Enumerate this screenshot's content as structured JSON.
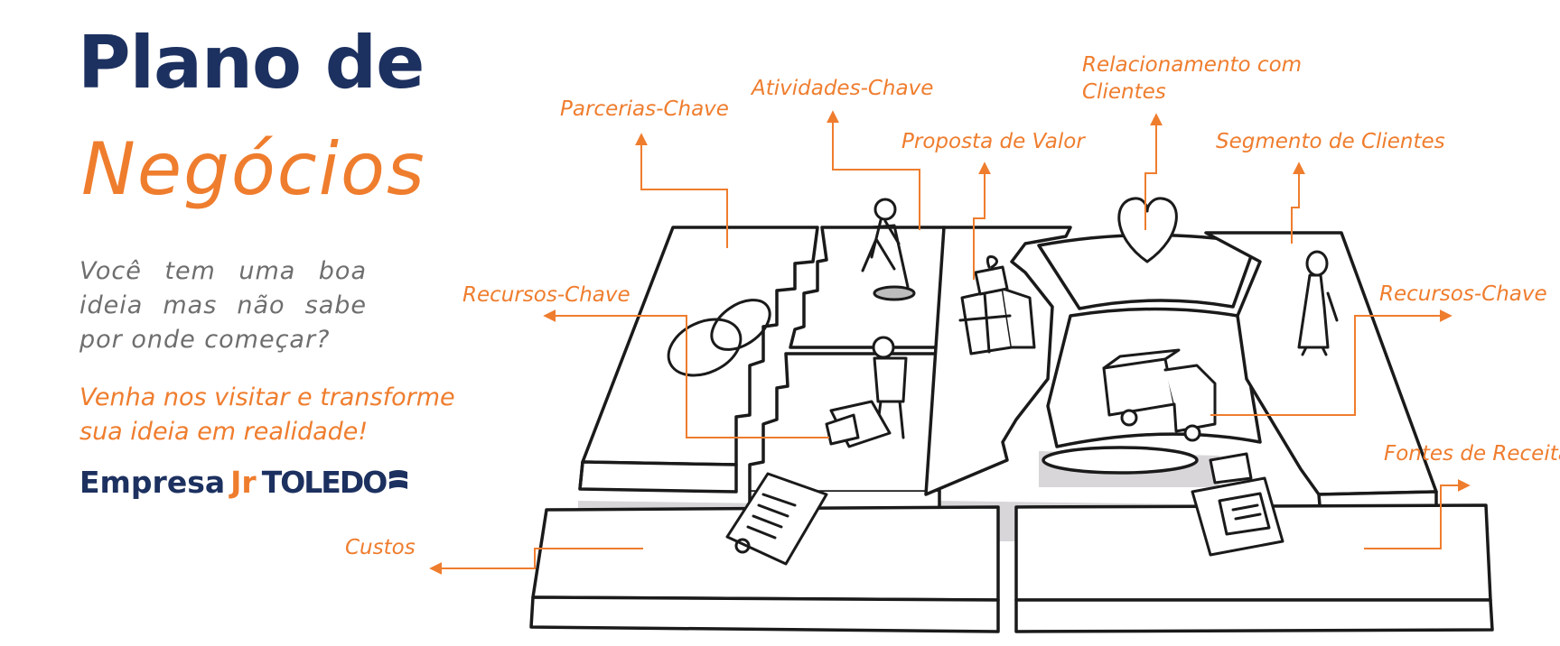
{
  "title": {
    "line1": "Plano de",
    "line2": "Negócios"
  },
  "intro": {
    "question": "Você tem uma boa ideia mas não sabe por onde começar?"
  },
  "cta": {
    "text": "Venha nos visitar e transforme sua ideia em realidade!"
  },
  "logo": {
    "part1": "Empresa",
    "part2": "Jr",
    "part3": "TOLEDO",
    "wordmark": "Empresa Jr TOLEDO"
  },
  "labels": {
    "parcerias_chave": "Parcerias-Chave",
    "atividades_chave": "Atividades-Chave",
    "proposta_valor": "Proposta de Valor",
    "relacionamento_1": "Relacionamento com",
    "relacionamento_2": "Clientes",
    "segmento_clientes": "Segmento de Clientes",
    "recursos_chave_left": "Recursos-Chave",
    "recursos_chave_right": "Recursos-Chave",
    "fontes_receita": "Fontes de Receita",
    "custos": "Custos"
  },
  "colors": {
    "navy": "#1d3160",
    "orange": "#ef7d2e",
    "gray_text": "#6e6e6e",
    "ink": "#1a1a1a",
    "shadow": "#d9d6da"
  },
  "icons": [
    "chain-links-icon",
    "worker-shovel-icon",
    "worker-boxes-icon",
    "gift-boxes-icon",
    "heart-icon",
    "person-icon",
    "truck-icon",
    "cash-register-icon",
    "invoice-icon"
  ]
}
